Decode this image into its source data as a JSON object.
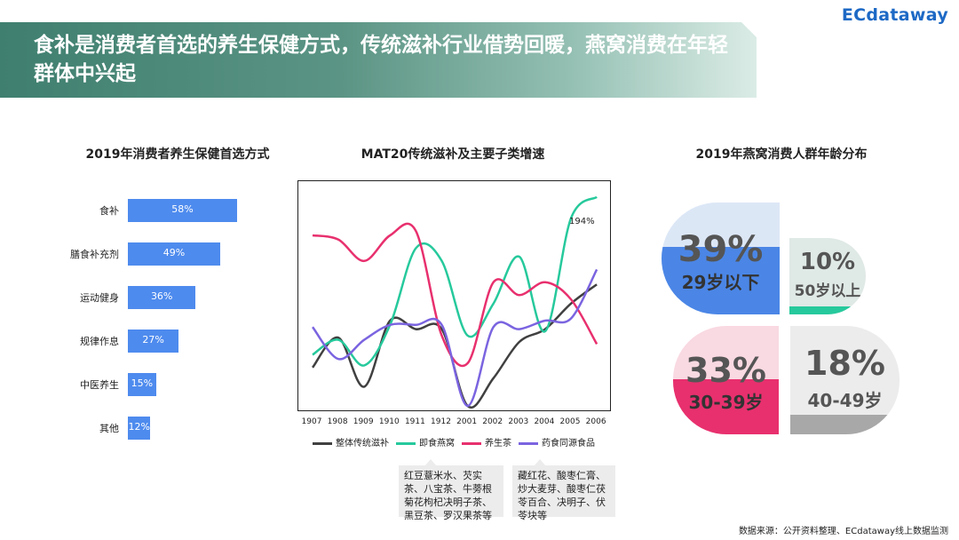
{
  "banner": {
    "title": "食补是消费者首选的养生保健方式，传统滋补行业借势回暖，燕窝消费在年轻群体中兴起"
  },
  "logo": {
    "text": "ECdataway"
  },
  "colors": {
    "bar": "#4e8bee",
    "overall": "#404040",
    "birdnest": "#26c99c",
    "tea": "#e8306e",
    "herbal": "#7b64e0"
  },
  "chart_data": [
    {
      "type": "bar",
      "title": "2019年消费者养生保健首选方式",
      "categories": [
        "食补",
        "膳食补充剂",
        "运动健身",
        "规律作息",
        "中医养生",
        "其他"
      ],
      "values": [
        58,
        49,
        36,
        27,
        15,
        12
      ],
      "value_labels": [
        "58%",
        "49%",
        "36%",
        "27%",
        "15%",
        "12%"
      ],
      "orientation": "horizontal"
    },
    {
      "type": "line",
      "title": "MAT20传统滋补及主要子类增速",
      "x": [
        "1907",
        "1908",
        "1909",
        "1910",
        "1911",
        "1912",
        "2001",
        "2002",
        "2003",
        "2004",
        "2005",
        "2006"
      ],
      "ylim": [
        0,
        100
      ],
      "series": [
        {
          "name": "整体传统滋补",
          "values": [
            18,
            32,
            9,
            40,
            36,
            36,
            0,
            13,
            30,
            36,
            48,
            57
          ]
        },
        {
          "name": "即食燕窝",
          "values": [
            24,
            31,
            19,
            38,
            74,
            68,
            33,
            48,
            70,
            35,
            88,
            98
          ]
        },
        {
          "name": "养生茶",
          "values": [
            80,
            78,
            68,
            80,
            82,
            33,
            20,
            58,
            52,
            58,
            50,
            29
          ]
        },
        {
          "name": "药食同源食品",
          "values": [
            37,
            22,
            31,
            38,
            38,
            38,
            0,
            37,
            36,
            40,
            41,
            64
          ]
        }
      ],
      "annotation": "194%",
      "grid": false,
      "legend": "bottom"
    },
    {
      "type": "pie",
      "title": "2019年燕窝消费人群年龄分布",
      "categories": [
        "29岁以下",
        "50岁以上",
        "30-39岁",
        "40-49岁"
      ],
      "values": [
        39,
        10,
        33,
        18
      ],
      "value_labels": [
        "39%",
        "10%",
        "33%",
        "18%"
      ]
    }
  ],
  "callouts": {
    "tea": "红豆薏米水、芡实茶、八宝茶、牛蒡根菊花枸杞决明子茶、黑豆茶、罗汉果茶等",
    "herbal": "藏红花、酸枣仁膏、炒大麦芽、酸枣仁茯苓百合、决明子、伏苓块等"
  },
  "source": "数据来源：公开资料整理、ECdataway线上数据监测"
}
